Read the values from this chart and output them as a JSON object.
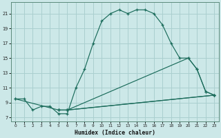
{
  "xlabel": "Humidex (Indice chaleur)",
  "bg_color": "#cce8e8",
  "grid_color": "#aacfcf",
  "line_color": "#1a6b5a",
  "xlim": [
    -0.5,
    23.5
  ],
  "ylim": [
    6.5,
    22.5
  ],
  "xticks": [
    0,
    1,
    2,
    3,
    4,
    5,
    6,
    7,
    8,
    9,
    10,
    11,
    12,
    13,
    14,
    15,
    16,
    17,
    18,
    19,
    20,
    21,
    22,
    23
  ],
  "yticks": [
    7,
    9,
    11,
    13,
    15,
    17,
    19,
    21
  ],
  "main_curve": {
    "x": [
      0,
      1,
      2,
      3,
      4,
      5,
      6,
      7,
      8,
      9,
      10,
      11,
      12,
      13,
      14,
      15,
      16,
      17,
      18,
      19,
      20,
      21,
      22,
      23
    ],
    "y": [
      9.5,
      9.5,
      8.0,
      8.5,
      8.5,
      7.5,
      7.5,
      11.0,
      13.5,
      17.0,
      20.0,
      21.0,
      21.5,
      21.0,
      21.5,
      21.5,
      21.0,
      19.5,
      17.0,
      15.0,
      15.0,
      13.5,
      10.5,
      10.0
    ]
  },
  "line2": {
    "x": [
      0,
      5,
      6,
      23
    ],
    "y": [
      9.5,
      8.0,
      8.0,
      10.0
    ]
  },
  "line3": {
    "x": [
      5,
      6,
      20,
      21,
      22,
      23
    ],
    "y": [
      8.0,
      8.0,
      15.0,
      13.5,
      10.5,
      10.0
    ]
  },
  "line4": {
    "x": [
      5,
      6,
      23
    ],
    "y": [
      8.0,
      8.0,
      10.0
    ]
  }
}
